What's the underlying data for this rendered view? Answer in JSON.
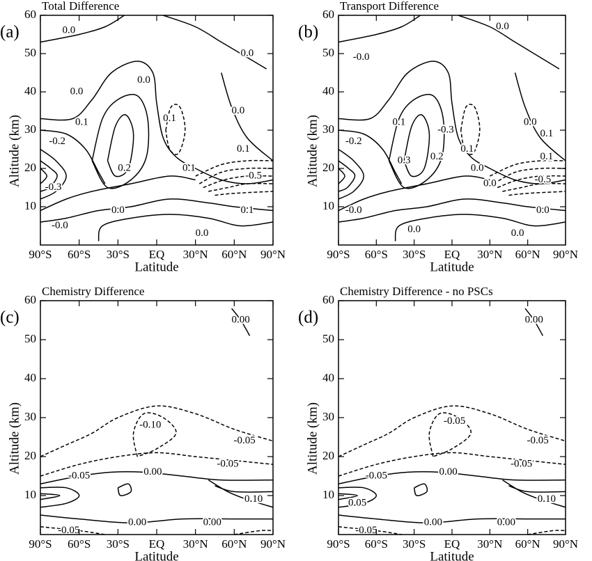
{
  "chart_data": [
    {
      "type": "contour",
      "panel_label": "(a)",
      "title": "Total Difference",
      "xlabel": "Latitude",
      "ylabel": "Altitude (km)",
      "xlim": [
        -90,
        90
      ],
      "xticks": [
        {
          "value": -90,
          "label": "90°S"
        },
        {
          "value": -60,
          "label": "60°S"
        },
        {
          "value": -30,
          "label": "30°S"
        },
        {
          "value": 0,
          "label": "EQ"
        },
        {
          "value": 30,
          "label": "30°N"
        },
        {
          "value": 60,
          "label": "60°N"
        },
        {
          "value": 90,
          "label": "90°N"
        }
      ],
      "ylim": [
        0,
        60
      ],
      "yticks": [
        10,
        20,
        30,
        40,
        50,
        60
      ],
      "contour_labels": [
        "0.0",
        "0.0",
        "0.0",
        "0.0",
        "0.1",
        "0.1",
        "0.0",
        "0.1",
        "-0.2",
        "0.2",
        "-0.3",
        "0.1",
        "-0.5",
        "0.0",
        "0.1",
        "-0.0",
        "0.0"
      ]
    },
    {
      "type": "contour",
      "panel_label": "(b)",
      "title": "Transport Difference",
      "xlabel": "Latitude",
      "ylabel": "Altitude (km)",
      "xlim": [
        -90,
        90
      ],
      "xticks": [
        {
          "value": -90,
          "label": "90°S"
        },
        {
          "value": -60,
          "label": "60°S"
        },
        {
          "value": -30,
          "label": "30°S"
        },
        {
          "value": 0,
          "label": "EQ"
        },
        {
          "value": 30,
          "label": "30°N"
        },
        {
          "value": 60,
          "label": "60°N"
        },
        {
          "value": 90,
          "label": "90°N"
        }
      ],
      "ylim": [
        0,
        60
      ],
      "yticks": [
        10,
        20,
        30,
        40,
        50,
        60
      ],
      "contour_labels": [
        "0.0",
        "-0.0",
        "0.1",
        "-0.3",
        "0.2",
        "0.3",
        "-0.2",
        "0.1",
        "0.0",
        "0.1",
        "0.1",
        "0.0",
        "0.0",
        "-0.5",
        "0.0",
        "-0.0",
        "0.0",
        "0.0"
      ]
    },
    {
      "type": "contour",
      "panel_label": "(c)",
      "title": "Chemistry Difference",
      "xlabel": "Latitude",
      "ylabel": "Altitude (km)",
      "xlim": [
        -90,
        90
      ],
      "xticks": [
        {
          "value": -90,
          "label": "90°S"
        },
        {
          "value": -60,
          "label": "60°S"
        },
        {
          "value": -30,
          "label": "30°S"
        },
        {
          "value": 0,
          "label": "EQ"
        },
        {
          "value": 30,
          "label": "30°N"
        },
        {
          "value": 60,
          "label": "60°N"
        },
        {
          "value": 90,
          "label": "90°N"
        }
      ],
      "ylim": [
        0,
        60
      ],
      "yticks": [
        10,
        20,
        30,
        40,
        50,
        60
      ],
      "contour_labels": [
        "0.00",
        "-0.10",
        "-0.05",
        "-0.05",
        "-0.05",
        "0.00",
        "0.10",
        "0.00",
        "0.00",
        "-0.05"
      ]
    },
    {
      "type": "contour",
      "panel_label": "(d)",
      "title": "Chemistry Difference - no PSCs",
      "xlabel": "Latitude",
      "ylabel": "Altitude (km)",
      "xlim": [
        -90,
        90
      ],
      "xticks": [
        {
          "value": -90,
          "label": "90°S"
        },
        {
          "value": -60,
          "label": "60°S"
        },
        {
          "value": -30,
          "label": "30°S"
        },
        {
          "value": 0,
          "label": "EQ"
        },
        {
          "value": 30,
          "label": "30°N"
        },
        {
          "value": 60,
          "label": "60°N"
        },
        {
          "value": 90,
          "label": "90°N"
        }
      ],
      "ylim": [
        0,
        60
      ],
      "yticks": [
        10,
        20,
        30,
        40,
        50,
        60
      ],
      "contour_labels": [
        "0.00",
        "-0.05",
        "-0.05",
        "-0.05",
        "-0.05",
        "0.00",
        "0.10",
        "0.05",
        "0.00",
        "0.00",
        "-0.05"
      ]
    }
  ]
}
